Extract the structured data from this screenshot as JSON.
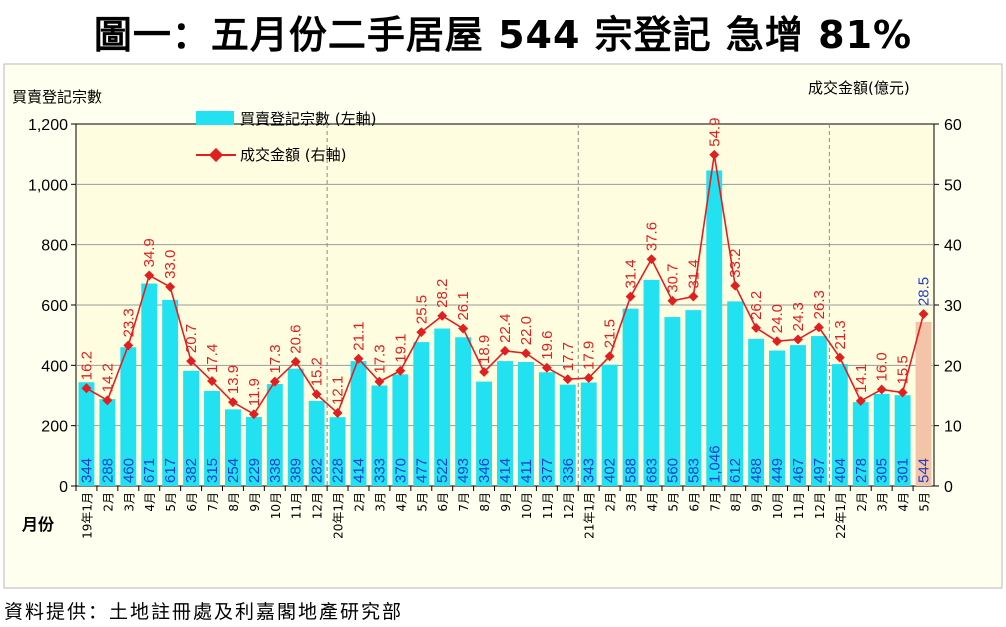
{
  "title": "圖一：五月份二手居屋 544 宗登記  急增 81%",
  "source": "資料提供：土地註冊處及利嘉閣地產研究部",
  "chart_data": {
    "type": "bar",
    "title": "圖一：五月份二手居屋 544 宗登記  急增 81%",
    "ylabel_left": "買賣登記宗數",
    "ylabel_right": "成交金額(億元)",
    "xlabel": "月份",
    "ylim_left": [
      0,
      1200
    ],
    "ylim_right": [
      0,
      60
    ],
    "yticks_left": [
      "0",
      "200",
      "400",
      "600",
      "800",
      "1,000",
      "1,200"
    ],
    "yticks_right": [
      "0",
      "10",
      "20",
      "30",
      "40",
      "50",
      "60"
    ],
    "grid": "horizontal",
    "legend_position": "top-left",
    "colors": {
      "bar": "#22e1f0",
      "bar_last": "#f3c4a8",
      "line": "#e02020",
      "bar_label": "#1f3fd0",
      "plot_bg": "#fffde0"
    },
    "categories": [
      "19年1月",
      "2月",
      "3月",
      "4月",
      "5月",
      "6月",
      "7月",
      "8月",
      "9月",
      "10月",
      "11月",
      "12月",
      "20年1月",
      "2月",
      "3月",
      "4月",
      "5月",
      "6月",
      "7月",
      "8月",
      "9月",
      "10月",
      "11月",
      "12月",
      "21年1月",
      "2月",
      "3月",
      "4月",
      "5月",
      "6月",
      "7月",
      "8月",
      "9月",
      "10月",
      "11月",
      "12月",
      "22年1月",
      "2月",
      "3月",
      "4月",
      "5月"
    ],
    "series": [
      {
        "name": "買賣登記宗數 (左軸)",
        "type": "bar",
        "axis": "left",
        "values": [
          344,
          288,
          460,
          671,
          617,
          382,
          315,
          254,
          229,
          338,
          389,
          282,
          228,
          414,
          333,
          370,
          477,
          522,
          493,
          346,
          414,
          411,
          377,
          336,
          343,
          402,
          588,
          683,
          560,
          583,
          1046,
          612,
          488,
          449,
          467,
          497,
          404,
          278,
          305,
          301,
          544
        ],
        "labels": [
          "344",
          "288",
          "460",
          "671",
          "617",
          "382",
          "315",
          "254",
          "229",
          "338",
          "389",
          "282",
          "228",
          "414",
          "333",
          "370",
          "477",
          "522",
          "493",
          "346",
          "414",
          "411",
          "377",
          "336",
          "343",
          "402",
          "588",
          "683",
          "560",
          "583",
          "1,046",
          "612",
          "488",
          "449",
          "467",
          "497",
          "404",
          "278",
          "305",
          "301",
          "544"
        ]
      },
      {
        "name": "成交金額 (右軸)",
        "type": "line",
        "axis": "right",
        "values": [
          16.2,
          14.2,
          23.3,
          34.9,
          33.0,
          20.7,
          17.4,
          13.9,
          11.9,
          17.3,
          20.6,
          15.2,
          12.1,
          21.1,
          17.3,
          19.1,
          25.5,
          28.2,
          26.1,
          18.9,
          22.4,
          22.0,
          19.6,
          17.7,
          17.9,
          21.5,
          31.4,
          37.6,
          30.7,
          31.4,
          54.9,
          33.2,
          26.2,
          24.0,
          24.3,
          26.3,
          21.3,
          14.1,
          16.0,
          15.5,
          28.5
        ],
        "labels": [
          "16.2",
          "14.2",
          "23.3",
          "34.9",
          "33.0",
          "20.7",
          "17.4",
          "13.9",
          "11.9",
          "17.3",
          "20.6",
          "15.2",
          "12.1",
          "21.1",
          "17.3",
          "19.1",
          "25.5",
          "28.2",
          "26.1",
          "18.9",
          "22.4",
          "22.0",
          "19.6",
          "17.7",
          "17.9",
          "21.5",
          "31.4",
          "37.6",
          "30.7",
          "31.4",
          "54.9",
          "33.2",
          "26.2",
          "24.0",
          "24.3",
          "26.3",
          "21.3",
          "14.1",
          "16.0",
          "15.5",
          "28.5"
        ]
      }
    ]
  }
}
